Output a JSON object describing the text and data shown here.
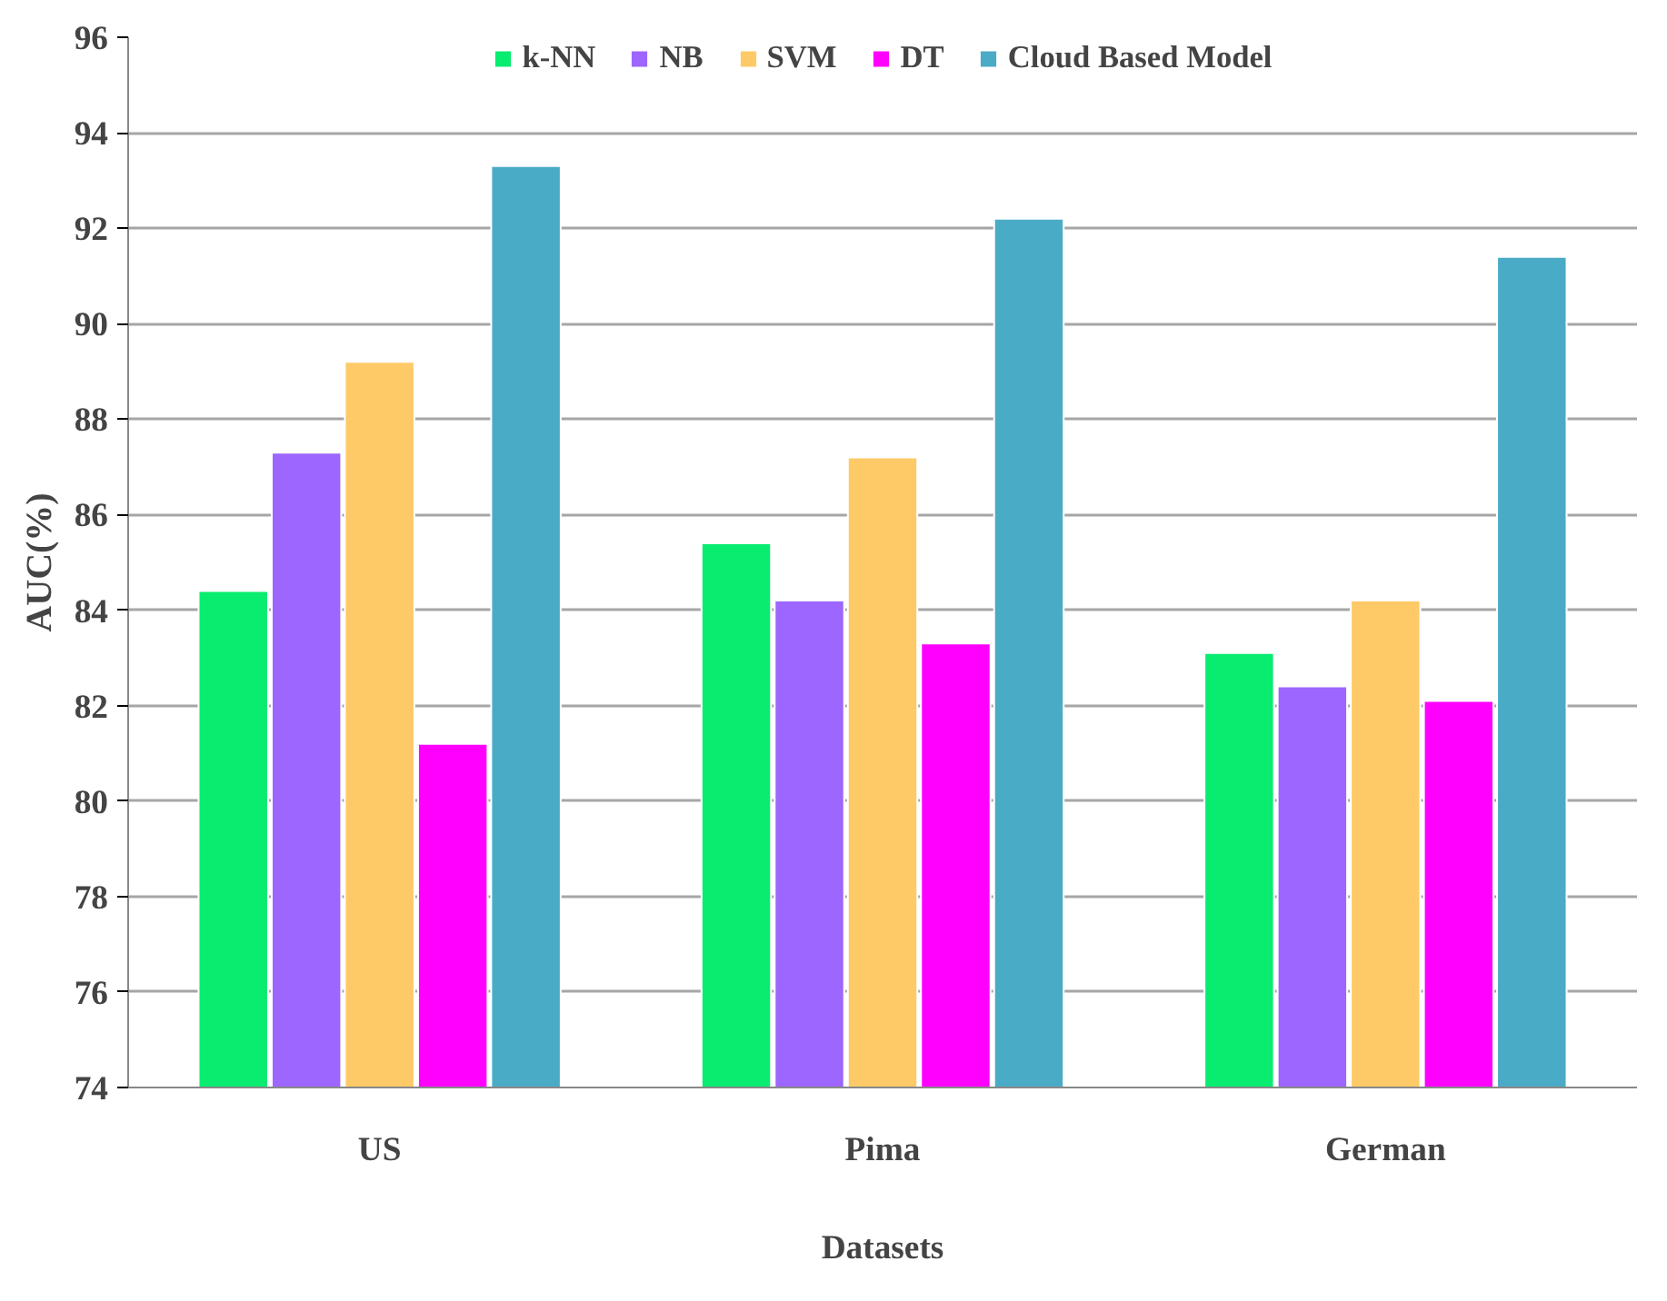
{
  "chart_data": {
    "type": "bar",
    "xlabel": "Datasets",
    "ylabel": "AUC(%)",
    "categories": [
      "US",
      "Pima",
      "German"
    ],
    "series": [
      {
        "name": "k-NN",
        "color": "#08ec70",
        "values": [
          84.4,
          85.4,
          83.1
        ]
      },
      {
        "name": "NB",
        "color": "#9c66ff",
        "values": [
          87.3,
          84.2,
          82.4
        ]
      },
      {
        "name": "SVM",
        "color": "#fdca67",
        "values": [
          89.2,
          87.2,
          84.2
        ]
      },
      {
        "name": "DT",
        "color": "#ff00ff",
        "values": [
          81.2,
          83.3,
          82.1
        ]
      },
      {
        "name": "Cloud Based Model",
        "color": "#4aabc6",
        "values": [
          93.3,
          92.2,
          91.4
        ]
      }
    ],
    "ylim": [
      74,
      96
    ],
    "yticks": [
      74,
      76,
      78,
      80,
      82,
      84,
      86,
      88,
      90,
      92,
      94,
      96
    ],
    "grid": "y",
    "legend": "top"
  }
}
